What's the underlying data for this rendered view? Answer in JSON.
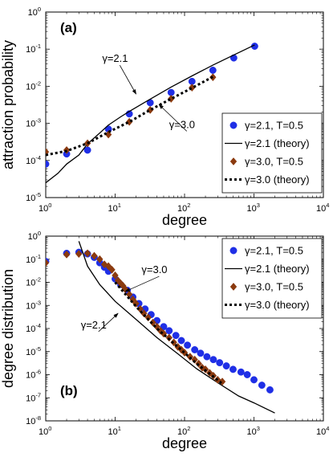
{
  "chart_data": [
    {
      "type": "scatter",
      "panel_label": "(a)",
      "xlabel": "degree",
      "ylabel": "attraction probability",
      "xscale": "log",
      "yscale": "log",
      "xlim": [
        1,
        10000
      ],
      "ylim": [
        1e-05,
        1
      ],
      "xtick_exponents": [
        "0",
        "1",
        "2",
        "3",
        "4"
      ],
      "ytick_exponents": [
        "-5",
        "-4",
        "-3",
        "-2",
        "-1",
        "0"
      ],
      "tick_base": "10",
      "grid": false,
      "legend_position": "bottom-right",
      "series": [
        {
          "name": "γ=2.1, T=0.5",
          "style": "marker-circle",
          "color": "#1f2fe6",
          "x": [
            1,
            2,
            4,
            8,
            16,
            32,
            64,
            128,
            256,
            512,
            1024
          ],
          "y": [
            8e-05,
            0.00015,
            0.00019,
            0.0007,
            0.0018,
            0.0036,
            0.0068,
            0.0135,
            0.027,
            0.058,
            0.12
          ]
        },
        {
          "name": "γ=2.1 (theory)",
          "style": "line-solid",
          "color": "#000000",
          "x": [
            1,
            1.5,
            2,
            3,
            4,
            6,
            8,
            12,
            16,
            32,
            64,
            128,
            256,
            512,
            1024
          ],
          "y": [
            2.5e-05,
            4.5e-05,
            8e-05,
            0.00014,
            0.00028,
            0.00055,
            0.0009,
            0.0015,
            0.0021,
            0.0045,
            0.0095,
            0.019,
            0.037,
            0.07,
            0.13
          ]
        },
        {
          "name": "γ=3.0, T=0.5",
          "style": "marker-diamond",
          "color": "#8b3a0f",
          "x": [
            1,
            2,
            4,
            8,
            16,
            32,
            64,
            128,
            256
          ],
          "y": [
            0.00017,
            0.00019,
            0.00029,
            0.0005,
            0.0011,
            0.0023,
            0.0046,
            0.0092,
            0.0175
          ]
        },
        {
          "name": "γ=3.0 (theory)",
          "style": "line-dotted",
          "color": "#000000",
          "x": [
            1,
            2,
            4,
            8,
            16,
            32,
            64,
            128,
            256
          ],
          "y": [
            0.00014,
            0.00018,
            0.00029,
            0.00058,
            0.0011,
            0.0023,
            0.0046,
            0.009,
            0.018
          ]
        }
      ],
      "annotations": [
        {
          "text": "γ=2.1",
          "label_x": 6.5,
          "label_y": 0.045,
          "arrow_to_x": 20,
          "arrow_to_y": 0.0062
        },
        {
          "text": "γ=3.0",
          "label_x": 60,
          "label_y": 0.00075,
          "arrow_to_x": 43,
          "arrow_to_y": 0.0032
        }
      ]
    },
    {
      "type": "scatter",
      "panel_label": "(b)",
      "xlabel": "degree",
      "ylabel": "degree distribution",
      "xscale": "log",
      "yscale": "log",
      "xlim": [
        1,
        10000
      ],
      "ylim": [
        1e-08,
        1
      ],
      "xtick_exponents": [
        "0",
        "1",
        "2",
        "3",
        "4"
      ],
      "ytick_exponents": [
        "-8",
        "-7",
        "-6",
        "-5",
        "-4",
        "-3",
        "-2",
        "-1",
        "0"
      ],
      "tick_base": "10",
      "grid": false,
      "legend_position": "top-right",
      "series": [
        {
          "name": "γ=2.1, T=0.5",
          "style": "marker-circle",
          "color": "#1f2fe6",
          "x": [
            1,
            2,
            3,
            4,
            5,
            6,
            7,
            8,
            10,
            12,
            15,
            18,
            22,
            27,
            33,
            40,
            50,
            60,
            75,
            90,
            110,
            140,
            170,
            210,
            260,
            320,
            400,
            500,
            650,
            800,
            1000,
            1300,
            1700
          ],
          "y": [
            0.08,
            0.18,
            0.2,
            0.17,
            0.12,
            0.07,
            0.045,
            0.03,
            0.014,
            0.008,
            0.0045,
            0.0023,
            0.0012,
            0.0007,
            0.0004,
            0.00022,
            0.00012,
            8e-05,
            5e-05,
            3e-05,
            1.9e-05,
            1.2e-05,
            8.5e-06,
            6e-06,
            4.5e-06,
            3.3e-06,
            2.4e-06,
            1.7e-06,
            1.3e-06,
            1e-06,
            6e-07,
            3.5e-07,
            2.2e-07
          ]
        },
        {
          "name": "γ=2.1 (theory)",
          "style": "line-solid",
          "color": "#000000",
          "x": [
            3,
            4,
            6,
            10,
            20,
            40,
            80,
            150,
            300,
            600,
            1000,
            2000
          ],
          "y": [
            0.6,
            0.05,
            0.008,
            0.0015,
            0.00025,
            4e-05,
            8e-06,
            1.8e-06,
            4.5e-07,
            1.2e-07,
            6e-08,
            2.2e-08
          ]
        },
        {
          "name": "γ=3.0, T=0.5",
          "style": "marker-diamond",
          "color": "#8b3a0f",
          "x": [
            1,
            2,
            3,
            4,
            5,
            6,
            7,
            8,
            9,
            10,
            11,
            12,
            13,
            14,
            16,
            18,
            20,
            23,
            26,
            30,
            35,
            40,
            45,
            50,
            60,
            70,
            80,
            90,
            100,
            120,
            140,
            160,
            180,
            200,
            230,
            260,
            300,
            350
          ],
          "y": [
            0.07,
            0.16,
            0.17,
            0.18,
            0.14,
            0.1,
            0.06,
            0.05,
            0.035,
            0.02,
            0.012,
            0.009,
            0.007,
            0.005,
            0.003,
            0.0018,
            0.0012,
            0.0007,
            0.00045,
            0.0003,
            0.00018,
            0.00012,
            8e-05,
            6e-05,
            4e-05,
            2.5e-05,
            1.6e-05,
            1.2e-05,
            9e-06,
            6e-06,
            4.5e-06,
            3e-06,
            2e-06,
            1.7e-06,
            1.2e-06,
            9e-07,
            6e-07,
            5e-07
          ]
        },
        {
          "name": "γ=3.0 (theory)",
          "style": "line-dotted",
          "color": "#000000",
          "x": [
            10,
            20,
            40,
            80,
            150,
            250,
            350
          ],
          "y": [
            0.01,
            0.0009,
            0.0001,
            1.6e-05,
            3e-06,
            9e-07,
            4e-07
          ]
        }
      ],
      "annotations": [
        {
          "text": "γ=3.0",
          "label_x": 24,
          "label_y": 0.025,
          "arrow_to_x": 14,
          "arrow_to_y": 0.004
        },
        {
          "text": "γ=2.1",
          "label_x": 3.2,
          "label_y": 0.0001,
          "arrow_to_x": 11,
          "arrow_to_y": 0.00045
        }
      ]
    }
  ]
}
